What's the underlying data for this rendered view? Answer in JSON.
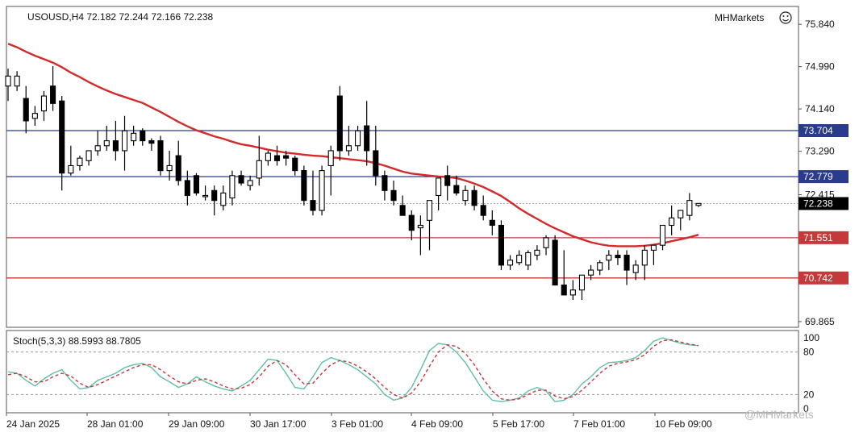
{
  "header": {
    "symbol_line": "USOUSD,H4  72.182 72.244 72.166 72.238",
    "brand": "MHMarkets"
  },
  "indicator": {
    "label": "Stoch(5,3,3) 88.5993 88.7805",
    "levels": [
      "100",
      "80",
      "20",
      "0"
    ]
  },
  "watermark": "@MHMarkets",
  "colors": {
    "up": "#ffffff",
    "down": "#000000",
    "ma": "#d42a2a",
    "blue_level": "#2a3a8c",
    "red_level": "#c43a3a",
    "stoch_main": "#5fbfa8",
    "stoch_signal": "#c43a3a"
  },
  "chart_data": [
    {
      "type": "candlestick",
      "title": "USOUSD,H4",
      "x_labels": [
        "24 Jan 2025",
        "28 Jan 01:00",
        "29 Jan 09:00",
        "30 Jan 17:00",
        "3 Feb 01:00",
        "4 Feb 09:00",
        "5 Feb 17:00",
        "7 Feb 01:00",
        "10 Feb 09:00"
      ],
      "y_ticks": [
        "75.840",
        "74.990",
        "74.140",
        "73.290",
        "72.415",
        "69.865"
      ],
      "ylim": [
        69.75,
        76.2
      ],
      "current_price": "72.238",
      "levels": [
        {
          "value": 73.704,
          "label": "73.704",
          "kind": "resistance"
        },
        {
          "value": 72.779,
          "label": "72.779",
          "kind": "resistance"
        },
        {
          "value": 71.551,
          "label": "71.551",
          "kind": "support"
        },
        {
          "value": 70.742,
          "label": "70.742",
          "kind": "support"
        }
      ],
      "candles": [
        [
          74.6,
          74.95,
          74.3,
          74.8
        ],
        [
          74.6,
          74.9,
          74.5,
          74.8
        ],
        [
          74.35,
          74.6,
          73.65,
          73.9
        ],
        [
          73.95,
          74.2,
          73.8,
          74.05
        ],
        [
          74.1,
          74.5,
          73.9,
          74.4
        ],
        [
          74.6,
          75.0,
          74.1,
          74.25
        ],
        [
          74.3,
          74.4,
          72.5,
          72.85
        ],
        [
          72.85,
          73.4,
          72.8,
          73.0
        ],
        [
          73.0,
          73.2,
          72.9,
          73.15
        ],
        [
          73.1,
          73.3,
          73.0,
          73.3
        ],
        [
          73.3,
          73.7,
          73.2,
          73.4
        ],
        [
          73.4,
          73.8,
          73.3,
          73.5
        ],
        [
          73.5,
          73.9,
          73.1,
          73.3
        ],
        [
          73.3,
          74.0,
          72.9,
          73.7
        ],
        [
          73.5,
          73.8,
          73.4,
          73.65
        ],
        [
          73.7,
          73.75,
          73.4,
          73.5
        ],
        [
          73.5,
          73.55,
          73.3,
          73.45
        ],
        [
          73.5,
          73.6,
          72.8,
          72.9
        ],
        [
          72.9,
          73.3,
          72.7,
          73.0
        ],
        [
          73.2,
          73.5,
          72.6,
          72.7
        ],
        [
          72.7,
          72.9,
          72.2,
          72.4
        ],
        [
          72.8,
          72.85,
          72.4,
          72.45
        ],
        [
          72.4,
          72.6,
          72.3,
          72.4
        ],
        [
          72.5,
          72.6,
          72.0,
          72.3
        ],
        [
          72.2,
          72.6,
          72.1,
          72.45
        ],
        [
          72.35,
          72.9,
          72.2,
          72.8
        ],
        [
          72.8,
          72.9,
          72.6,
          72.65
        ],
        [
          72.6,
          72.8,
          72.5,
          72.7
        ],
        [
          72.75,
          73.6,
          72.6,
          73.1
        ],
        [
          73.1,
          73.3,
          73.0,
          73.25
        ],
        [
          73.2,
          73.4,
          73.0,
          73.1
        ],
        [
          73.2,
          73.3,
          73.0,
          73.15
        ],
        [
          73.15,
          73.2,
          72.8,
          72.9
        ],
        [
          72.9,
          73.0,
          72.2,
          72.3
        ],
        [
          72.3,
          72.9,
          72.0,
          72.1
        ],
        [
          72.1,
          73.0,
          72.0,
          72.9
        ],
        [
          73.0,
          73.4,
          72.4,
          73.3
        ],
        [
          74.4,
          74.6,
          73.1,
          73.3
        ],
        [
          73.3,
          73.8,
          73.2,
          73.4
        ],
        [
          73.4,
          73.8,
          73.3,
          73.7
        ],
        [
          73.8,
          74.3,
          73.0,
          73.3
        ],
        [
          73.3,
          73.8,
          72.6,
          72.8
        ],
        [
          72.8,
          72.9,
          72.3,
          72.5
        ],
        [
          72.5,
          72.7,
          72.2,
          72.3
        ],
        [
          72.2,
          72.4,
          72.0,
          72.0
        ],
        [
          72.0,
          72.1,
          71.5,
          71.7
        ],
        [
          71.75,
          72.0,
          71.2,
          71.8
        ],
        [
          71.9,
          72.3,
          71.3,
          72.3
        ],
        [
          72.4,
          72.7,
          72.1,
          72.75
        ],
        [
          72.8,
          73.0,
          72.3,
          72.6
        ],
        [
          72.6,
          72.8,
          72.4,
          72.45
        ],
        [
          72.3,
          72.6,
          72.2,
          72.5
        ],
        [
          72.5,
          72.6,
          72.1,
          72.2
        ],
        [
          72.2,
          72.4,
          71.9,
          72.0
        ],
        [
          71.9,
          72.1,
          71.6,
          71.8
        ],
        [
          71.8,
          71.9,
          70.9,
          71.0
        ],
        [
          71.0,
          71.2,
          70.9,
          71.1
        ],
        [
          71.05,
          71.3,
          71.0,
          71.2
        ],
        [
          71.0,
          71.3,
          70.9,
          71.25
        ],
        [
          71.2,
          71.4,
          71.1,
          71.3
        ],
        [
          71.35,
          71.6,
          71.2,
          71.55
        ],
        [
          71.5,
          71.6,
          70.6,
          70.6
        ],
        [
          70.6,
          71.3,
          70.4,
          70.4
        ],
        [
          70.4,
          70.7,
          70.3,
          70.5
        ],
        [
          70.5,
          70.8,
          70.3,
          70.8
        ],
        [
          70.8,
          71.0,
          70.7,
          70.9
        ],
        [
          70.9,
          71.1,
          70.8,
          71.05
        ],
        [
          71.1,
          71.3,
          70.9,
          71.2
        ],
        [
          71.2,
          71.3,
          71.0,
          71.15
        ],
        [
          71.2,
          71.3,
          70.6,
          70.9
        ],
        [
          70.85,
          71.1,
          70.7,
          71.0
        ],
        [
          71.0,
          71.4,
          70.7,
          71.3
        ],
        [
          71.3,
          71.4,
          71.0,
          71.4
        ],
        [
          71.4,
          71.8,
          71.3,
          71.8
        ],
        [
          71.8,
          72.2,
          71.6,
          71.95
        ],
        [
          71.95,
          72.1,
          71.7,
          72.1
        ],
        [
          72.0,
          72.45,
          71.9,
          72.3
        ],
        [
          72.2,
          72.24,
          72.17,
          72.24
        ]
      ],
      "ma_series": [
        75.45,
        75.38,
        75.29,
        75.21,
        75.14,
        75.07,
        74.98,
        74.87,
        74.78,
        74.68,
        74.59,
        74.51,
        74.44,
        74.38,
        74.32,
        74.26,
        74.17,
        74.08,
        73.98,
        73.88,
        73.79,
        73.71,
        73.65,
        73.59,
        73.54,
        73.48,
        73.43,
        73.4,
        73.36,
        73.32,
        73.29,
        73.26,
        73.24,
        73.22,
        73.2,
        73.19,
        73.17,
        73.15,
        73.13,
        73.11,
        73.09,
        73.05,
        73.0,
        72.94,
        72.88,
        72.84,
        72.82,
        72.8,
        72.78,
        72.77,
        72.75,
        72.7,
        72.64,
        72.57,
        72.48,
        72.39,
        72.27,
        72.14,
        72.03,
        71.93,
        71.83,
        71.74,
        71.66,
        71.58,
        71.52,
        71.46,
        71.42,
        71.39,
        71.38,
        71.38,
        71.38,
        71.39,
        71.41,
        71.44,
        71.48,
        71.52,
        71.56,
        71.61
      ]
    },
    {
      "type": "line",
      "title": "Stoch(5,3,3)",
      "ylim": [
        0,
        100
      ],
      "levels": [
        80,
        20
      ],
      "series": [
        {
          "name": "main",
          "values": [
            52,
            50,
            40,
            32,
            42,
            50,
            55,
            40,
            28,
            30,
            40,
            45,
            50,
            58,
            62,
            64,
            58,
            45,
            38,
            30,
            35,
            45,
            38,
            32,
            28,
            25,
            32,
            40,
            55,
            70,
            68,
            50,
            30,
            28,
            45,
            65,
            72,
            68,
            62,
            55,
            45,
            35,
            20,
            12,
            15,
            30,
            55,
            82,
            92,
            90,
            80,
            65,
            45,
            25,
            12,
            10,
            12,
            15,
            25,
            30,
            25,
            10,
            12,
            20,
            35,
            45,
            58,
            65,
            66,
            68,
            72,
            82,
            95,
            100,
            96,
            92,
            90,
            89
          ]
        },
        {
          "name": "signal",
          "values": [
            48,
            50,
            45,
            38,
            38,
            45,
            50,
            46,
            36,
            30,
            34,
            40,
            46,
            52,
            58,
            62,
            62,
            55,
            46,
            38,
            35,
            40,
            42,
            38,
            32,
            28,
            29,
            34,
            45,
            60,
            68,
            62,
            48,
            35,
            36,
            50,
            62,
            68,
            66,
            60,
            52,
            42,
            30,
            20,
            15,
            22,
            38,
            60,
            80,
            90,
            88,
            78,
            62,
            42,
            25,
            14,
            12,
            14,
            20,
            26,
            26,
            18,
            14,
            17,
            26,
            38,
            50,
            60,
            64,
            66,
            69,
            76,
            88,
            96,
            97,
            94,
            91,
            89
          ]
        }
      ]
    }
  ]
}
